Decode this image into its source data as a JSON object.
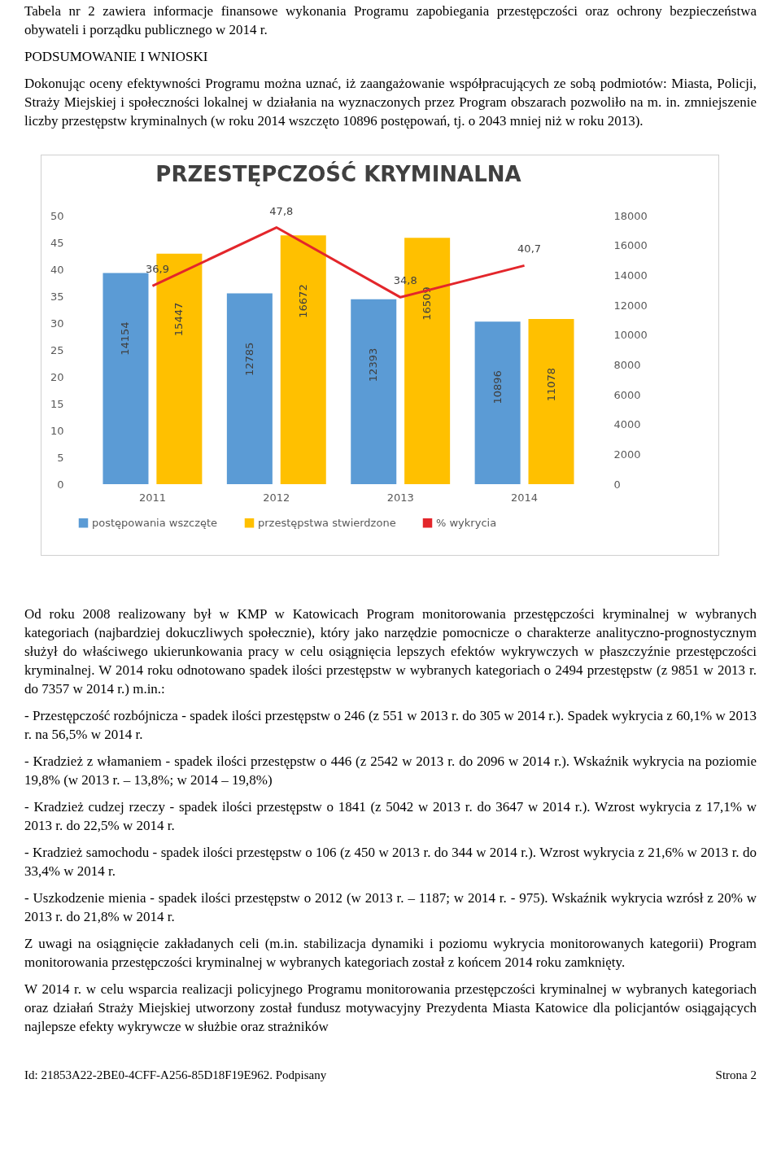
{
  "chart_data": {
    "type": "bar",
    "title": "PRZESTĘPCZOŚĆ KRYMINALNA",
    "categories": [
      "2011",
      "2012",
      "2013",
      "2014"
    ],
    "series": [
      {
        "name": "postępowania wszczęte",
        "axis": "y2",
        "color": "#5b9bd5",
        "values": [
          14154,
          12785,
          12393,
          10896
        ],
        "value_labels": [
          "14154",
          "12785",
          "12393",
          "10896"
        ]
      },
      {
        "name": "przestępstwa stwierdzone",
        "axis": "y2",
        "color": "#ffc000",
        "values": [
          15447,
          16672,
          16509,
          11078
        ],
        "value_labels": [
          "15447",
          "16672",
          "16509",
          "11078"
        ]
      },
      {
        "name": "% wykrycia",
        "type": "line",
        "color": "#e3262b",
        "values": [
          36.9,
          47.8,
          34.8,
          40.7
        ],
        "value_labels": [
          "36,9",
          "47,8",
          "34,8",
          "40,7"
        ]
      }
    ],
    "ylim": [
      0,
      50
    ],
    "yticks": [
      0,
      5,
      10,
      15,
      20,
      25,
      30,
      35,
      40,
      45,
      50
    ],
    "y2lim": [
      0,
      18000
    ],
    "y2ticks": [
      0,
      2000,
      4000,
      6000,
      8000,
      10000,
      12000,
      14000,
      16000,
      18000
    ],
    "legend": "bottom",
    "annotations": [
      "Tabela nr 2 zawiera informacje finansowe wykonania Programu zapobiegania przestępczości oraz ochrony bezpieczeństwa obywateli i porządku publicznego w 2014 r.",
      "PODSUMOWANIE I WNIOSKI",
      "Dokonując oceny efektywności Programu można uznać, iż zaangażowanie współpracujących ze sobą podmiotów: Miasta, Policji, Straży Miejskiej i społeczności lokalnej w działania na wyznaczonych przez Program obszarach pozwoliło na m. in. zmniejszenie liczby przestępstw kryminalnych (w roku 2014 wszczęto 10896 postępowań, tj. o 2043 mniej niż w roku 2013).",
      "Od roku 2008 realizowany był w KMP w Katowicach Program monitorowania przestępczości kryminalnej w wybranych kategoriach (najbardziej dokuczliwych społecznie), który jako narzędzie pomocnicze o charakterze analityczno-prognostycznym służył do właściwego ukierunkowania pracy w celu osiągnięcia lepszych efektów wykrywczych w płaszczyźnie przestępczości kryminalnej. W 2014 roku odnotowano spadek ilości przestępstw w wybranych kategoriach o 2494 przestępstw (z 9851 w 2013 r. do 7357 w 2014 r.) m.in.:",
      "- Przestępczość rozbójnicza - spadek ilości przestępstw o 246 (z 551 w 2013 r. do 305 w 2014 r.). Spadek wykrycia z 60,1% w 2013 r. na 56,5% w 2014 r.",
      "- Kradzież z włamaniem - spadek ilości przestępstw o 446 (z 2542 w 2013 r. do 2096 w 2014 r.). Wskaźnik wykrycia na poziomie 19,8% (w 2013 r. – 13,8%; w 2014 – 19,8%)",
      "- Kradzież cudzej rzeczy - spadek ilości przestępstw o 1841 (z 5042 w 2013 r. do 3647 w 2014 r.). Wzrost wykrycia z 17,1% w 2013 r. do 22,5% w 2014 r.",
      "- Kradzież samochodu - spadek ilości przestępstw o 106 (z 450 w 2013 r. do 344 w 2014 r.). Wzrost wykrycia z 21,6% w 2013 r. do 33,4% w 2014 r.",
      "- Uszkodzenie mienia - spadek ilości przestępstw o 2012 (w 2013 r. – 1187; w 2014 r. - 975). Wskaźnik wykrycia wzrósł z 20% w 2013 r. do 21,8% w 2014 r.",
      "Z uwagi na osiągnięcie zakładanych celi (m.in. stabilizacja dynamiki i poziomu wykrycia monitorowanych kategorii) Program monitorowania przestępczości kryminalnej w wybranych kategoriach został z końcem 2014 roku zamknięty.",
      "W 2014 r. w celu wsparcia realizacji policyjnego Programu monitorowania przestępczości kryminalnej w wybranych kategoriach oraz działań Straży Miejskiej utworzony został fundusz motywacyjny Prezydenta Miasta Katowice dla policjantów osiągających najlepsze efekty wykrywcze w służbie oraz strażników",
      "Id: 21853A22-2BE0-4CFF-A256-85D18F19E962. Podpisany",
      "Strona 2"
    ]
  }
}
